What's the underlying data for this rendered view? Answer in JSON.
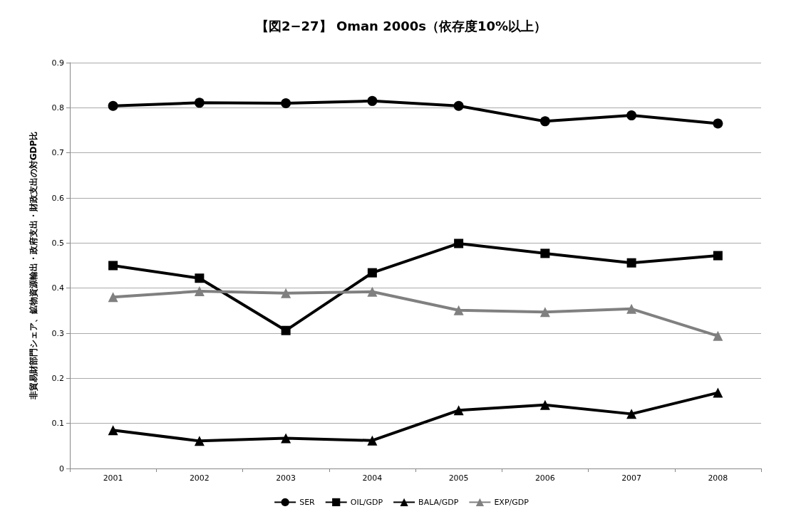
{
  "chart_data": {
    "type": "line",
    "title": "【図2−27】 Oman 2000s（依存度10%以上）",
    "ylabel": "非貿易財部門シェア、鉱物資源輸出・政府支出・財政支出の対GDP比",
    "categories": [
      "2001",
      "2002",
      "2003",
      "2004",
      "2005",
      "2006",
      "2007",
      "2008"
    ],
    "series": [
      {
        "name": "SER",
        "color": "#000000",
        "marker": "circle",
        "values": [
          0.804,
          0.811,
          0.81,
          0.815,
          0.804,
          0.77,
          0.783,
          0.765
        ]
      },
      {
        "name": "OIL/GDP",
        "color": "#000000",
        "marker": "square",
        "values": [
          0.45,
          0.422,
          0.306,
          0.434,
          0.499,
          0.477,
          0.456,
          0.472
        ]
      },
      {
        "name": "BALA/GDP",
        "color": "#000000",
        "marker": "triangle",
        "values": [
          0.085,
          0.061,
          0.067,
          0.062,
          0.129,
          0.141,
          0.121,
          0.168
        ]
      },
      {
        "name": "EXP/GDP",
        "color": "#808080",
        "marker": "triangle",
        "values": [
          0.38,
          0.393,
          0.389,
          0.392,
          0.351,
          0.347,
          0.354,
          0.294
        ]
      }
    ],
    "ylim": [
      0,
      0.9
    ],
    "yticks": [
      0,
      0.1,
      0.2,
      0.3,
      0.4,
      0.5,
      0.6,
      0.7,
      0.8,
      0.9
    ],
    "grid": "y",
    "legend": "bottom",
    "line_style": "solid"
  }
}
